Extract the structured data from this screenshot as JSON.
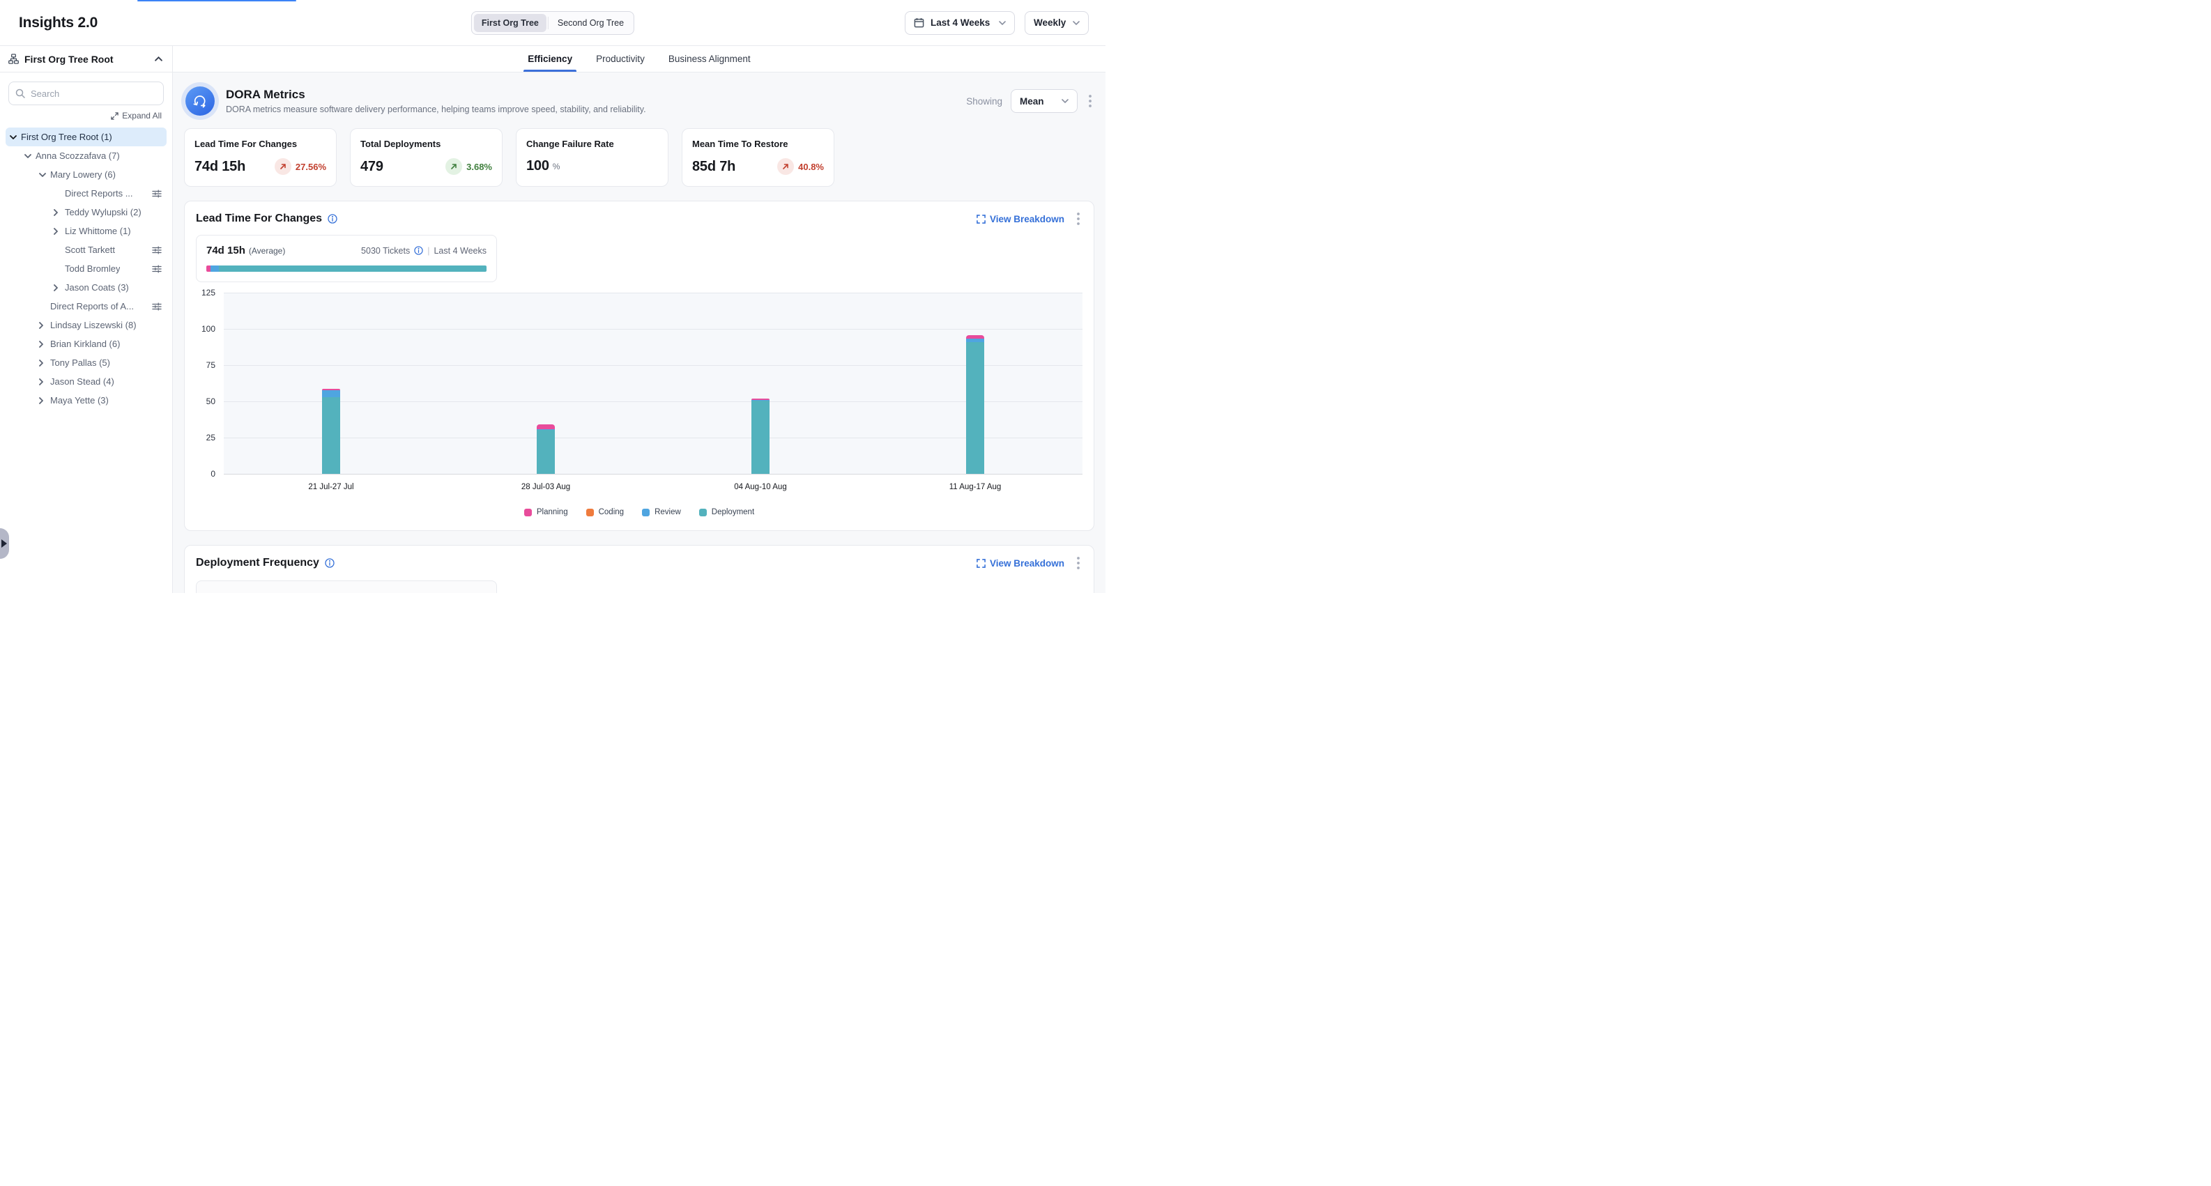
{
  "app": {
    "title": "Insights 2.0"
  },
  "header": {
    "org_tree_toggle": {
      "options": [
        "First Org Tree",
        "Second Org Tree"
      ],
      "selected": "First Org Tree"
    },
    "date_range": "Last 4 Weeks",
    "granularity": "Weekly"
  },
  "sidebar": {
    "root_label": "First Org Tree Root",
    "search_placeholder": "Search",
    "expand_all_label": "Expand All",
    "tree": [
      {
        "label": "First Org Tree Root (1)",
        "level": 0,
        "chevron": "down",
        "selected": true,
        "filter_icon": false
      },
      {
        "label": "Anna Scozzafava (7)",
        "level": 1,
        "chevron": "down",
        "selected": false,
        "filter_icon": false
      },
      {
        "label": "Mary Lowery (6)",
        "level": 2,
        "chevron": "down",
        "selected": false,
        "filter_icon": false
      },
      {
        "label": "Direct Reports ...",
        "level": 3,
        "chevron": "none",
        "selected": false,
        "filter_icon": true
      },
      {
        "label": "Teddy Wylupski (2)",
        "level": 3,
        "chevron": "right",
        "selected": false,
        "filter_icon": false
      },
      {
        "label": "Liz Whittome (1)",
        "level": 3,
        "chevron": "right",
        "selected": false,
        "filter_icon": false
      },
      {
        "label": "Scott Tarkett",
        "level": 3,
        "chevron": "none",
        "selected": false,
        "filter_icon": true
      },
      {
        "label": "Todd Bromley",
        "level": 3,
        "chevron": "none",
        "selected": false,
        "filter_icon": true
      },
      {
        "label": "Jason Coats (3)",
        "level": 3,
        "chevron": "right",
        "selected": false,
        "filter_icon": false
      },
      {
        "label": "Direct Reports of A...",
        "level": 2,
        "chevron": "none",
        "selected": false,
        "filter_icon": true
      },
      {
        "label": "Lindsay Liszewski (8)",
        "level": 2,
        "chevron": "right",
        "selected": false,
        "filter_icon": false
      },
      {
        "label": "Brian Kirkland (6)",
        "level": 2,
        "chevron": "right",
        "selected": false,
        "filter_icon": false
      },
      {
        "label": "Tony Pallas (5)",
        "level": 2,
        "chevron": "right",
        "selected": false,
        "filter_icon": false
      },
      {
        "label": "Jason Stead (4)",
        "level": 2,
        "chevron": "right",
        "selected": false,
        "filter_icon": false
      },
      {
        "label": "Maya Yette (3)",
        "level": 2,
        "chevron": "right",
        "selected": false,
        "filter_icon": false
      }
    ]
  },
  "tabs": {
    "items": [
      "Efficiency",
      "Productivity",
      "Business Alignment"
    ],
    "active": "Efficiency"
  },
  "dora": {
    "title": "DORA Metrics",
    "subtitle": "DORA metrics measure software delivery performance, helping teams improve speed, stability, and reliability.",
    "showing_label": "Showing",
    "showing_value": "Mean",
    "cards": [
      {
        "title": "Lead Time For Changes",
        "value": "74d 15h",
        "unit": "",
        "delta": "27.56%",
        "trend": "up",
        "sentiment": "negative"
      },
      {
        "title": "Total Deployments",
        "value": "479",
        "unit": "",
        "delta": "3.68%",
        "trend": "up",
        "sentiment": "positive"
      },
      {
        "title": "Change Failure Rate",
        "value": "100",
        "unit": "%",
        "delta": "",
        "trend": "",
        "sentiment": ""
      },
      {
        "title": "Mean Time To Restore",
        "value": "85d 7h",
        "unit": "",
        "delta": "40.8%",
        "trend": "up",
        "sentiment": "negative"
      }
    ]
  },
  "lead_time_section": {
    "title": "Lead Time For Changes",
    "view_breakdown_label": "View Breakdown",
    "summary": {
      "value": "74d 15h",
      "qualifier": "(Average)",
      "tickets": "5030 Tickets",
      "divider": "|",
      "range": "Last 4 Weeks",
      "mini_bar": [
        {
          "name": "Planning",
          "pct": 1.6
        },
        {
          "name": "Review",
          "pct": 3.0
        },
        {
          "name": "Deployment",
          "pct": 95.4
        }
      ]
    }
  },
  "chart_data": {
    "type": "bar",
    "stacked": true,
    "title": "Lead Time For Changes",
    "categories": [
      "21 Jul-27 Jul",
      "28 Jul-03 Aug",
      "04 Aug-10 Aug",
      "11 Aug-17 Aug"
    ],
    "series": [
      {
        "name": "Planning",
        "color": "#e84c9b",
        "values": [
          1,
          3,
          1,
          2
        ]
      },
      {
        "name": "Coding",
        "color": "#ef7b3d",
        "values": [
          0,
          0,
          0,
          0
        ]
      },
      {
        "name": "Review",
        "color": "#4fa5e0",
        "values": [
          4.5,
          0.5,
          0.5,
          2.5
        ]
      },
      {
        "name": "Deployment",
        "color": "#53b2bd",
        "values": [
          53,
          30.5,
          50.5,
          91
        ]
      }
    ],
    "xlabel": "",
    "ylabel": "",
    "ylim": [
      0,
      125
    ],
    "yticks": [
      0,
      25,
      50,
      75,
      100,
      125
    ],
    "grid": true,
    "legend_position": "bottom"
  },
  "deployment_section": {
    "title": "Deployment Frequency",
    "view_breakdown_label": "View Breakdown"
  },
  "colors": {
    "accent_blue": "#3570d8",
    "active_tab_underline": "#3b6fd9",
    "negative": "#c2402f",
    "negative_bg": "#f9e7e4",
    "positive": "#41803f",
    "positive_bg": "#e3f2e3",
    "selected_tree_bg": "#ddecfb"
  }
}
